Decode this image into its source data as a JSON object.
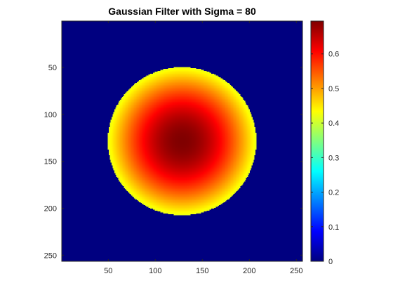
{
  "chart_data": {
    "type": "heatmap",
    "title": "Gaussian Filter with Sigma = 80",
    "xlabel": "",
    "ylabel": "",
    "xlim": [
      0.5,
      256.5
    ],
    "ylim": [
      0.5,
      256.5
    ],
    "y_reversed": true,
    "x_ticks": [
      50,
      100,
      150,
      200,
      250
    ],
    "y_ticks": [
      50,
      100,
      150,
      200,
      250
    ],
    "grid": false,
    "colormap": "jet",
    "clim": [
      0,
      0.695
    ],
    "colorbar_ticks": [
      0,
      0.1,
      0.2,
      0.3,
      0.4,
      0.5,
      0.6
    ],
    "background_value": 0,
    "circle": {
      "center_x": 128.5,
      "center_y": 128.5,
      "radius": 79
    },
    "sigma": 80,
    "peak_value": 0.695,
    "edge_value": 0.42
  }
}
